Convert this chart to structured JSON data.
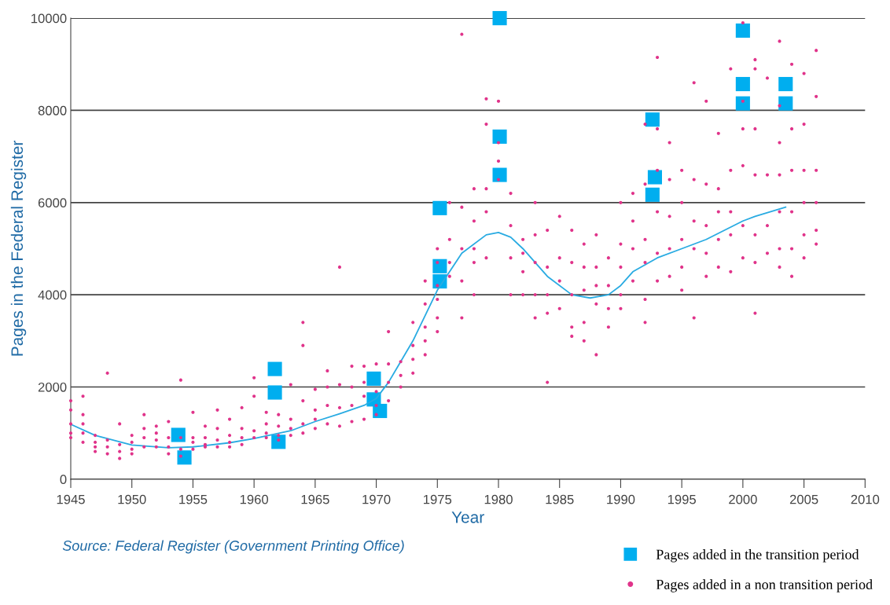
{
  "chart_data": {
    "type": "scatter",
    "xlabel": "Year",
    "ylabel": "Pages in the Federal Register",
    "xlim": [
      1945,
      2010
    ],
    "xticks": [
      1945,
      1950,
      1955,
      1960,
      1965,
      1970,
      1975,
      1980,
      1985,
      1990,
      1995,
      2000,
      2005,
      2010
    ],
    "ylim": [
      0,
      10000
    ],
    "yticks": [
      0,
      2000,
      4000,
      6000,
      8000,
      10000
    ],
    "grid": "y",
    "legend": "bottom right",
    "annotations": [
      "Source: Federal Register (Government Printing Office)"
    ],
    "series": [
      {
        "name": "Pages added in a non transition period",
        "marker": "circle",
        "color": "#e0338a",
        "x": [
          1945,
          1945,
          1945,
          1945,
          1945,
          1946,
          1946,
          1946,
          1946,
          1946,
          1947,
          1947,
          1947,
          1947,
          1948,
          1948,
          1948,
          1948,
          1949,
          1949,
          1949,
          1949,
          1950,
          1950,
          1950,
          1950,
          1951,
          1951,
          1951,
          1951,
          1952,
          1952,
          1952,
          1952,
          1953,
          1953,
          1953,
          1953,
          1954,
          1954,
          1954,
          1954,
          1955,
          1955,
          1955,
          1955,
          1956,
          1956,
          1956,
          1956,
          1957,
          1957,
          1957,
          1957,
          1958,
          1958,
          1958,
          1958,
          1959,
          1959,
          1959,
          1959,
          1960,
          1960,
          1960,
          1960,
          1961,
          1961,
          1961,
          1961,
          1962,
          1962,
          1962,
          1962,
          1963,
          1963,
          1963,
          1963,
          1964,
          1964,
          1964,
          1964,
          1964,
          1965,
          1965,
          1965,
          1965,
          1966,
          1966,
          1966,
          1966,
          1967,
          1967,
          1967,
          1967,
          1968,
          1968,
          1968,
          1968,
          1969,
          1969,
          1969,
          1969,
          1970,
          1970,
          1970,
          1970,
          1971,
          1971,
          1971,
          1971,
          1972,
          1972,
          1972,
          1973,
          1973,
          1973,
          1973,
          1974,
          1974,
          1974,
          1974,
          1974,
          1975,
          1975,
          1975,
          1975,
          1975,
          1975,
          1976,
          1976,
          1976,
          1976,
          1977,
          1977,
          1977,
          1977,
          1977,
          1978,
          1978,
          1978,
          1978,
          1978,
          1979,
          1979,
          1979,
          1979,
          1979,
          1980,
          1980,
          1980,
          1980,
          1981,
          1981,
          1981,
          1981,
          1982,
          1982,
          1982,
          1982,
          1983,
          1983,
          1983,
          1983,
          1983,
          1984,
          1984,
          1984,
          1984,
          1984,
          1985,
          1985,
          1985,
          1985,
          1986,
          1986,
          1986,
          1986,
          1986,
          1987,
          1987,
          1987,
          1987,
          1987,
          1988,
          1988,
          1988,
          1988,
          1988,
          1989,
          1989,
          1989,
          1989,
          1990,
          1990,
          1990,
          1990,
          1990,
          1991,
          1991,
          1991,
          1991,
          1992,
          1992,
          1992,
          1992,
          1992,
          1992,
          1993,
          1993,
          1993,
          1993,
          1993,
          1993,
          1994,
          1994,
          1994,
          1994,
          1994,
          1995,
          1995,
          1995,
          1995,
          1995,
          1996,
          1996,
          1996,
          1996,
          1996,
          1997,
          1997,
          1997,
          1997,
          1997,
          1998,
          1998,
          1998,
          1998,
          1998,
          1999,
          1999,
          1999,
          1999,
          1999,
          2000,
          2000,
          2000,
          2000,
          2000,
          2000,
          2001,
          2001,
          2001,
          2001,
          2001,
          2001,
          2001,
          2002,
          2002,
          2002,
          2002,
          2003,
          2003,
          2003,
          2003,
          2003,
          2003,
          2003,
          2004,
          2004,
          2004,
          2004,
          2004,
          2004,
          2005,
          2005,
          2005,
          2005,
          2005,
          2005,
          2006,
          2006,
          2006,
          2006,
          2006,
          2006
        ],
        "values": [
          1700,
          1500,
          1200,
          1000,
          900,
          1800,
          1400,
          1200,
          1000,
          800,
          950,
          800,
          700,
          600,
          2300,
          850,
          700,
          550,
          1200,
          750,
          600,
          450,
          950,
          800,
          650,
          550,
          1400,
          1100,
          900,
          700,
          1150,
          1000,
          850,
          700,
          1250,
          900,
          700,
          550,
          2150,
          900,
          650,
          500,
          1450,
          900,
          800,
          650,
          1150,
          900,
          750,
          700,
          1500,
          1100,
          850,
          700,
          1300,
          950,
          800,
          700,
          1550,
          1100,
          900,
          750,
          2200,
          1800,
          1050,
          900,
          1450,
          1200,
          1000,
          900,
          1400,
          1150,
          950,
          850,
          2050,
          1300,
          1100,
          950,
          3400,
          2900,
          1700,
          1200,
          1000,
          1950,
          1500,
          1300,
          1100,
          2350,
          2000,
          1600,
          1200,
          4600,
          2050,
          1550,
          1150,
          2450,
          2000,
          1600,
          1250,
          2450,
          2100,
          1800,
          1300,
          2500,
          1900,
          1600,
          1400,
          3200,
          2500,
          2100,
          1700,
          2550,
          2250,
          2000,
          3400,
          2900,
          2600,
          2300,
          4300,
          3800,
          3300,
          3000,
          2700,
          5000,
          4700,
          4200,
          3900,
          3500,
          3200,
          6000,
          5200,
          4700,
          4400,
          9650,
          5900,
          5000,
          4300,
          3500,
          6300,
          5600,
          5000,
          4700,
          4000,
          8250,
          7700,
          6300,
          5800,
          4800,
          8200,
          7300,
          6900,
          6500,
          6200,
          5500,
          4800,
          4000,
          5200,
          4900,
          4500,
          4000,
          6000,
          5300,
          4700,
          4000,
          3500,
          5400,
          4600,
          4000,
          3600,
          2100,
          5700,
          4800,
          4300,
          3700,
          5400,
          4700,
          4000,
          3300,
          3100,
          5100,
          4600,
          4100,
          3400,
          3000,
          5300,
          4600,
          4200,
          3800,
          2700,
          4800,
          4200,
          3700,
          3300,
          6000,
          5100,
          4600,
          4000,
          3700,
          6200,
          5600,
          5000,
          4300,
          7700,
          6400,
          5200,
          4700,
          3900,
          3400,
          9150,
          7600,
          6700,
          5800,
          4900,
          4300,
          7300,
          6500,
          5700,
          5000,
          4400,
          6700,
          6000,
          5200,
          4600,
          4100,
          8600,
          6500,
          5600,
          5000,
          3500,
          8200,
          6400,
          5500,
          4900,
          4400,
          7500,
          6300,
          5800,
          5200,
          4600,
          8900,
          6700,
          5800,
          5300,
          4500,
          9900,
          8200,
          7600,
          6800,
          5500,
          4800,
          9100,
          8900,
          7600,
          6600,
          5300,
          4700,
          3600,
          8700,
          6600,
          5500,
          4900,
          9500,
          8100,
          7300,
          6600,
          5800,
          5000,
          4600,
          9000,
          7600,
          6700,
          5800,
          5000,
          4400,
          8800,
          7700,
          6700,
          6000,
          5300,
          4800,
          9300,
          8300,
          6700,
          6000,
          5400,
          5100
        ]
      },
      {
        "name": "Pages added in the transition period",
        "marker": "square",
        "color": "#00aeef",
        "x": [
          1953.8,
          1954.3,
          1961.7,
          1961.7,
          1962.0,
          1969.8,
          1969.8,
          1970.3,
          1975.2,
          1975.2,
          1975.2,
          1980.1,
          1980.1,
          1980.1,
          1992.6,
          1992.8,
          1992.6,
          2000,
          2000,
          2000,
          2003.5,
          2003.5
        ],
        "values": [
          960,
          470,
          2390,
          1880,
          810,
          2180,
          1730,
          1480,
          5880,
          4620,
          4290,
          10000,
          7430,
          6600,
          7800,
          6550,
          6170,
          9730,
          8570,
          8150,
          8570,
          8150
        ]
      },
      {
        "type": "line",
        "marker": "none",
        "color": "#29abe2",
        "x": [
          1945,
          1947,
          1950,
          1953,
          1955,
          1958,
          1960,
          1963,
          1965,
          1967,
          1969,
          1970,
          1971,
          1973,
          1975,
          1977,
          1979,
          1980,
          1981,
          1982,
          1984,
          1986,
          1987.5,
          1989,
          1990,
          1991,
          1993,
          1995,
          1997,
          2000,
          2001,
          2003.5
        ],
        "values": [
          1190,
          950,
          740,
          680,
          700,
          790,
          880,
          1050,
          1250,
          1420,
          1600,
          1750,
          2100,
          3000,
          4100,
          4900,
          5300,
          5350,
          5250,
          5000,
          4400,
          4000,
          3930,
          4000,
          4200,
          4500,
          4800,
          5000,
          5200,
          5600,
          5700,
          5900
        ]
      }
    ]
  }
}
